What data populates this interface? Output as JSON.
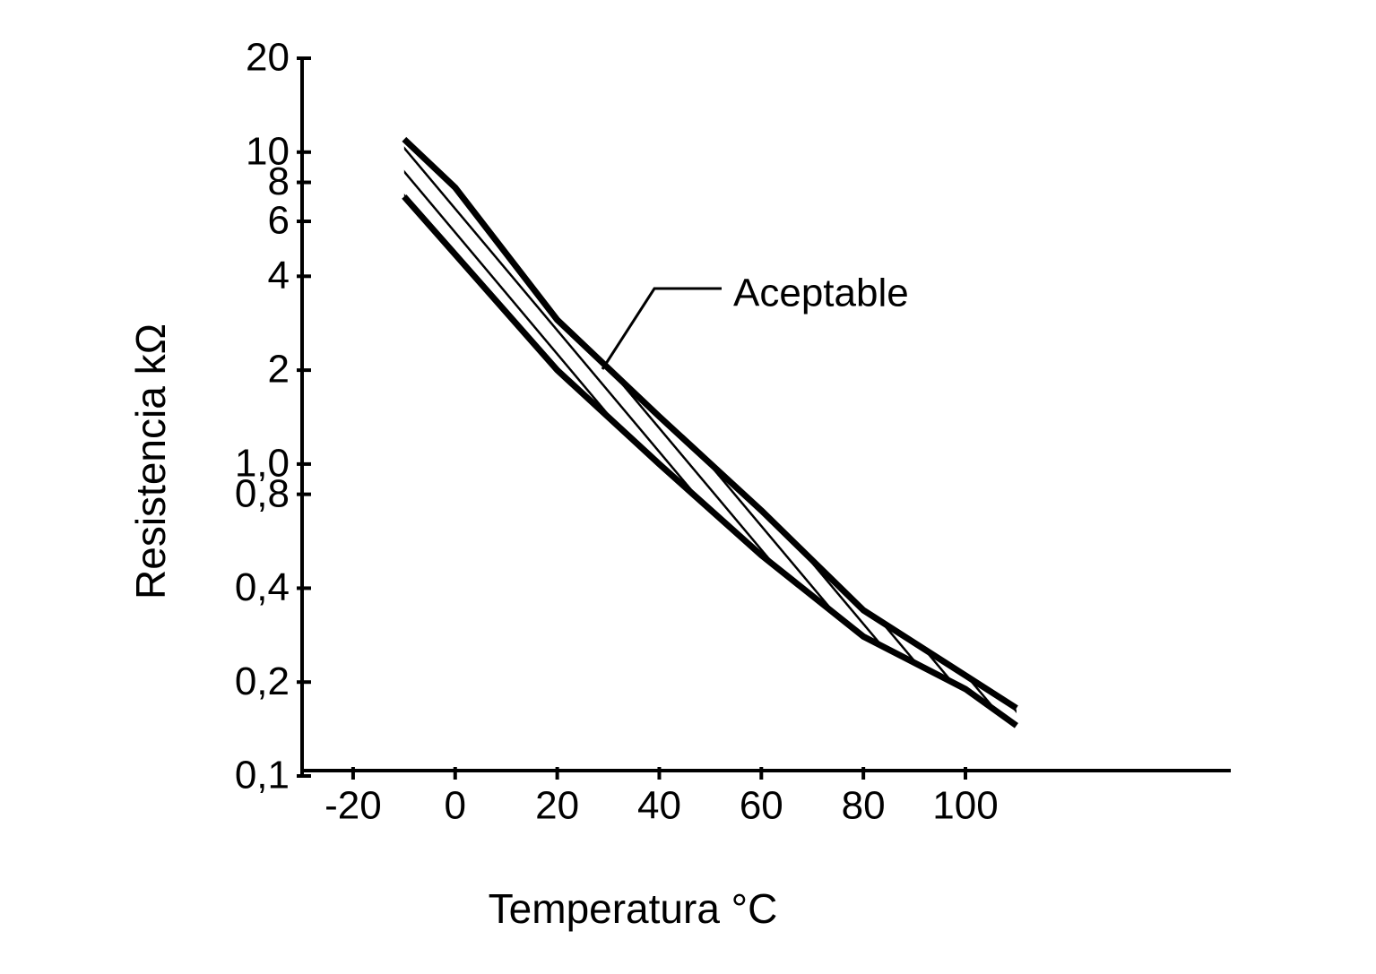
{
  "chart_data": {
    "type": "line",
    "x_label": "Temperatura °C",
    "y_label": "Resistencia kΩ",
    "annotation": "Aceptable",
    "x": [
      -10,
      0,
      20,
      40,
      60,
      80,
      100,
      110
    ],
    "series": [
      {
        "color": "#000000",
        "values": [
          11,
          7.7,
          2.9,
          1.42,
          0.71,
          0.34,
          0.21,
          0.165
        ]
      },
      {
        "color": "#000000",
        "values": [
          7.2,
          4.7,
          2.0,
          1.0,
          0.51,
          0.28,
          0.19,
          0.145
        ]
      }
    ],
    "xlim": [
      -30,
      152
    ],
    "xticks": [
      -20,
      0,
      20,
      40,
      60,
      80,
      100
    ],
    "ylim": [
      0.1,
      20
    ],
    "yscale": "log",
    "yticks": [
      {
        "value": 0.1,
        "label": "0,1"
      },
      {
        "value": 0.2,
        "label": "0,2"
      },
      {
        "value": 0.4,
        "label": "0,4"
      },
      {
        "value": 0.8,
        "label": "0,8"
      },
      {
        "value": 1.0,
        "label": "1,0"
      },
      2,
      4,
      6,
      8,
      10,
      20
    ],
    "grid": false,
    "hatch_between": true
  }
}
